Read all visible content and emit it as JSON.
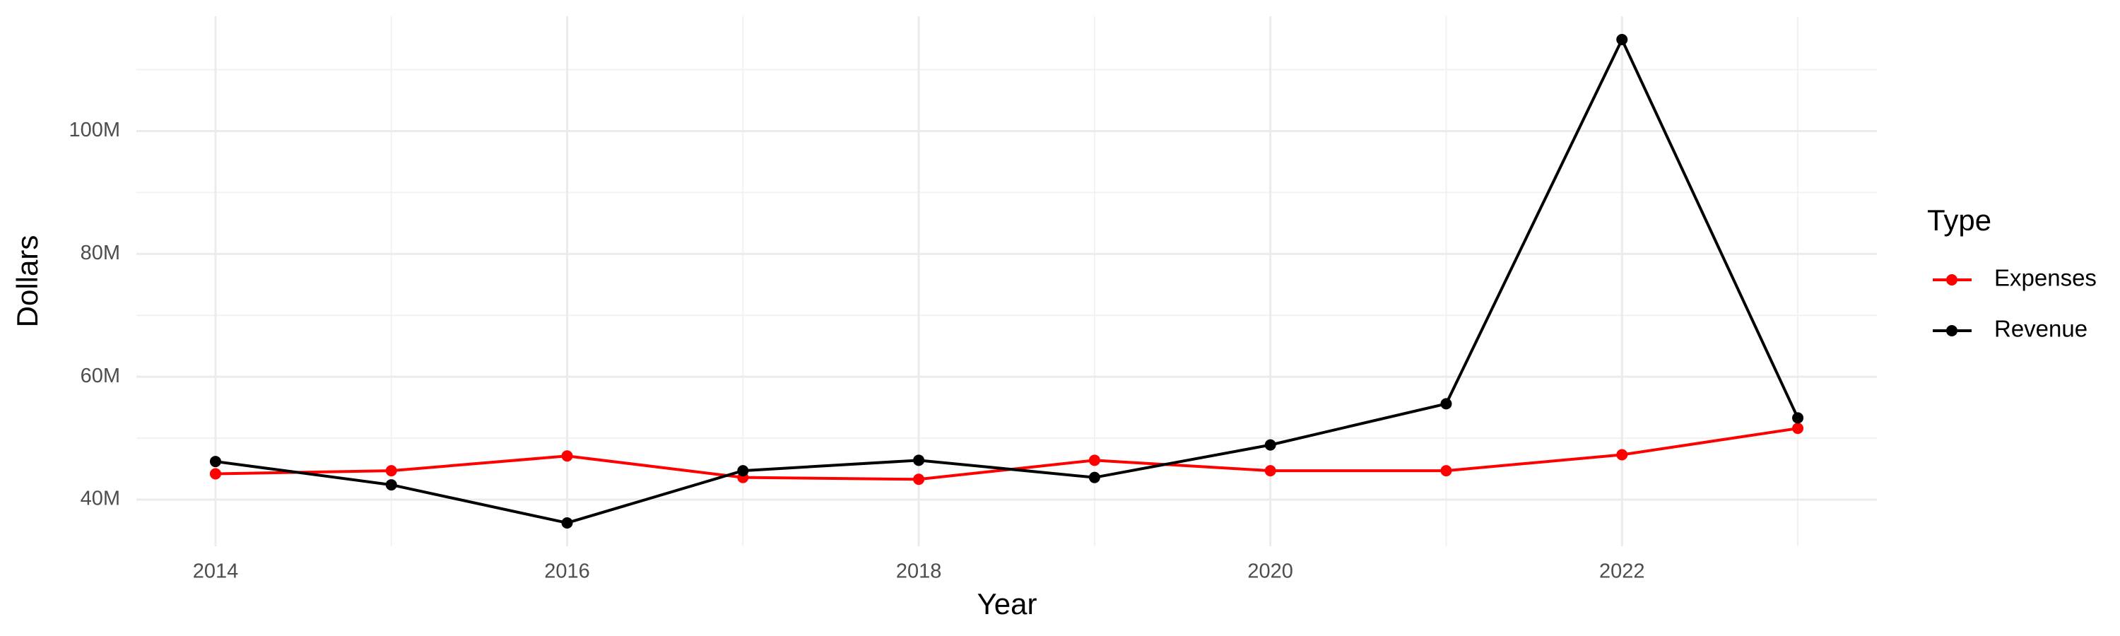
{
  "chart_data": {
    "type": "line",
    "x_label": "Year",
    "y_label": "Dollars",
    "legend_title": "Type",
    "legend": "right",
    "x": [
      2014,
      2015,
      2016,
      2017,
      2018,
      2019,
      2020,
      2021,
      2022,
      2023
    ],
    "series": [
      {
        "name": "Expenses",
        "color": "#ff0000",
        "values": [
          44200000,
          44700000,
          47100000,
          43600000,
          43300000,
          46400000,
          44700000,
          44700000,
          47300000,
          51600000
        ]
      },
      {
        "name": "Revenue",
        "color": "#000000",
        "values": [
          46200000,
          42400000,
          36200000,
          44700000,
          46400000,
          43600000,
          48900000,
          55600000,
          114900000,
          53300000
        ]
      }
    ],
    "xlim": [
      2013.55,
      2023.45
    ],
    "xticks": [
      2014,
      2016,
      2018,
      2020,
      2022
    ],
    "ylim": [
      32400000,
      118700000
    ],
    "yticks": [
      {
        "value": 40000000,
        "label": "40M"
      },
      {
        "value": 60000000,
        "label": "60M"
      },
      {
        "value": 80000000,
        "label": "80M"
      },
      {
        "value": 100000000,
        "label": "100M"
      }
    ],
    "grid": true
  }
}
